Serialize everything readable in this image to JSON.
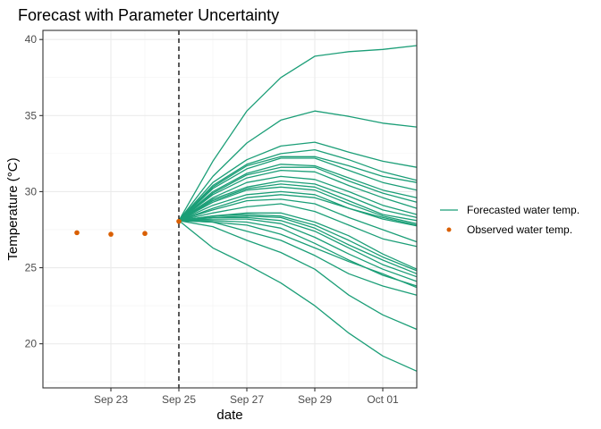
{
  "chart_data": {
    "type": "line",
    "title": "Forecast with Parameter Uncertainty",
    "xlabel": "date",
    "ylabel": "Temperature (°C)",
    "x_ticks": [
      "Sep 23",
      "Sep 25",
      "Sep 27",
      "Sep 29",
      "Oct 01"
    ],
    "y_ticks": [
      20,
      25,
      30,
      35,
      40
    ],
    "xlim": [
      "2023-09-21",
      "2023-10-02"
    ],
    "ylim": [
      17.1,
      40.6
    ],
    "grid": true,
    "legend_position": "right",
    "vline": {
      "date": "2023-09-25",
      "style": "dashed"
    },
    "colors": {
      "forecast": "#1b9e77",
      "observed": "#d95f02"
    },
    "forecast_dates": [
      "2023-09-25",
      "2023-09-26",
      "2023-09-27",
      "2023-09-28",
      "2023-09-29",
      "2023-09-30",
      "2023-10-01",
      "2023-10-02"
    ],
    "series": [
      {
        "name": "Forecasted water temp.",
        "kind": "line",
        "ensemble": [
          [
            28.1,
            32.0,
            35.3,
            37.5,
            38.9,
            39.2,
            39.35,
            39.6
          ],
          [
            28.1,
            31.0,
            33.2,
            34.7,
            35.3,
            34.95,
            34.5,
            34.25
          ],
          [
            28.1,
            30.6,
            32.1,
            33.0,
            33.25,
            32.6,
            32.0,
            31.6
          ],
          [
            28.1,
            30.4,
            31.8,
            32.5,
            32.75,
            32.1,
            31.3,
            30.75
          ],
          [
            28.1,
            30.3,
            31.7,
            32.3,
            32.3,
            31.7,
            31.0,
            30.6
          ],
          [
            28.1,
            30.2,
            31.5,
            32.2,
            32.2,
            31.4,
            30.6,
            30.1
          ],
          [
            28.1,
            30.0,
            31.2,
            31.8,
            31.7,
            30.9,
            30.1,
            29.6
          ],
          [
            28.1,
            29.9,
            31.1,
            31.6,
            31.6,
            30.7,
            29.9,
            29.3
          ],
          [
            28.1,
            29.8,
            30.9,
            31.4,
            31.3,
            30.4,
            29.6,
            28.9
          ],
          [
            28.1,
            29.6,
            30.6,
            31.0,
            30.8,
            30.0,
            29.1,
            28.5
          ],
          [
            28.1,
            29.5,
            30.3,
            30.7,
            30.5,
            29.7,
            28.8,
            28.3
          ],
          [
            28.1,
            29.4,
            30.2,
            30.5,
            30.3,
            29.4,
            28.5,
            28.1
          ],
          [
            28.1,
            29.3,
            30.1,
            30.3,
            30.1,
            29.2,
            28.4,
            27.9
          ],
          [
            28.1,
            29.1,
            29.8,
            30.0,
            29.8,
            28.9,
            28.2,
            27.75
          ],
          [
            28.1,
            28.9,
            29.6,
            29.8,
            29.6,
            28.9,
            28.3,
            27.8
          ],
          [
            28.1,
            28.8,
            29.4,
            29.5,
            29.2,
            28.3,
            27.5,
            26.7
          ],
          [
            28.1,
            28.6,
            29.0,
            29.2,
            28.7,
            27.8,
            26.9,
            26.4
          ],
          [
            28.1,
            28.4,
            28.6,
            28.6,
            28.0,
            27.1,
            25.9,
            24.9
          ],
          [
            28.1,
            28.4,
            28.5,
            28.4,
            27.8,
            26.8,
            25.7,
            24.8
          ],
          [
            28.1,
            28.3,
            28.4,
            28.3,
            27.6,
            26.5,
            25.5,
            24.6
          ],
          [
            28.1,
            28.3,
            28.3,
            28.1,
            27.4,
            26.3,
            25.2,
            24.4
          ],
          [
            28.1,
            28.2,
            28.2,
            27.9,
            27.0,
            25.9,
            24.9,
            24.1
          ],
          [
            28.1,
            28.1,
            28.0,
            27.6,
            26.6,
            25.5,
            24.5,
            23.8
          ],
          [
            28.1,
            28.0,
            27.8,
            27.2,
            26.3,
            25.4,
            24.6,
            23.7
          ],
          [
            28.1,
            28.0,
            27.4,
            26.8,
            25.8,
            24.6,
            23.8,
            23.2
          ],
          [
            28.1,
            27.7,
            26.8,
            26.0,
            24.9,
            23.2,
            21.9,
            20.95
          ],
          [
            28.1,
            26.3,
            25.2,
            24.0,
            22.5,
            20.7,
            19.2,
            18.2
          ]
        ]
      },
      {
        "name": "Observed water temp.",
        "kind": "points",
        "x": [
          "2023-09-22",
          "2023-09-23",
          "2023-09-24",
          "2023-09-25"
        ],
        "y": [
          27.3,
          27.2,
          27.25,
          28.05
        ]
      }
    ]
  }
}
